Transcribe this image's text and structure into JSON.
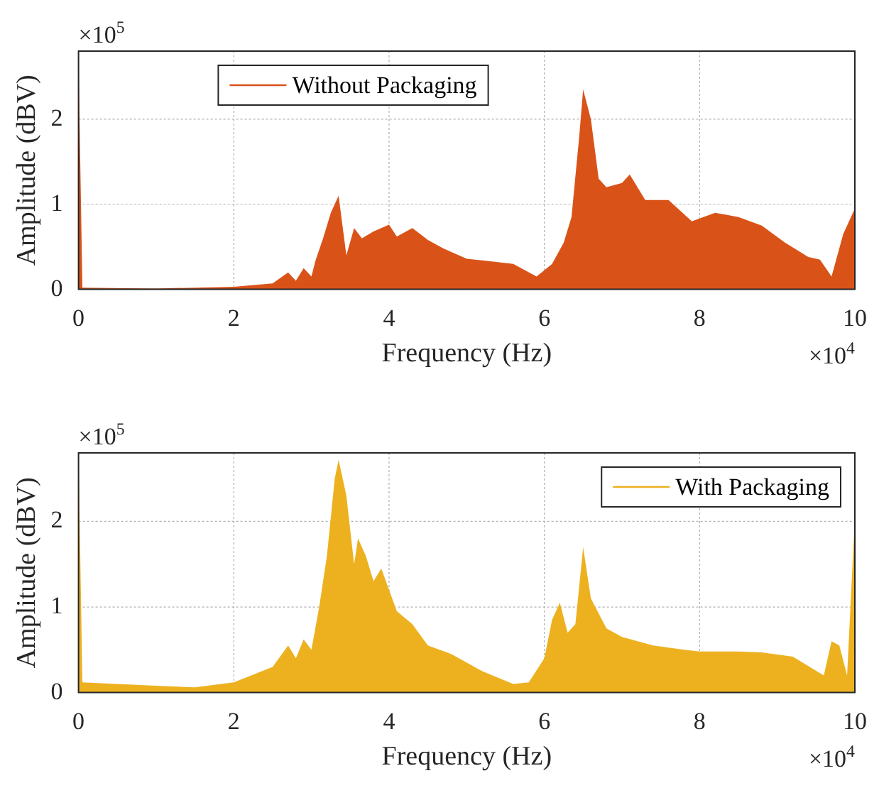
{
  "chart_data": [
    {
      "type": "area",
      "xlabel": "Frequency (Hz)",
      "ylabel": "Amplitude (dBV)",
      "x": [
        0,
        0.05,
        1,
        2,
        2.5,
        2.7,
        2.8,
        2.9,
        3.0,
        3.05,
        3.15,
        3.25,
        3.35,
        3.45,
        3.55,
        3.65,
        3.8,
        4.0,
        4.1,
        4.3,
        4.5,
        4.7,
        5.0,
        5.3,
        5.6,
        5.9,
        6.1,
        6.25,
        6.35,
        6.45,
        6.5,
        6.6,
        6.7,
        6.8,
        7.0,
        7.1,
        7.3,
        7.6,
        7.9,
        8.2,
        8.5,
        8.8,
        9.1,
        9.4,
        9.55,
        9.7,
        9.85,
        10
      ],
      "series": [
        {
          "name": "Without Packaging",
          "color": "#d95319",
          "values": [
            2.7,
            0.02,
            0.01,
            0.03,
            0.07,
            0.2,
            0.1,
            0.25,
            0.15,
            0.33,
            0.6,
            0.9,
            1.1,
            0.4,
            0.72,
            0.6,
            0.68,
            0.76,
            0.62,
            0.72,
            0.58,
            0.48,
            0.36,
            0.33,
            0.3,
            0.15,
            0.3,
            0.55,
            0.85,
            1.8,
            2.35,
            2.0,
            1.3,
            1.2,
            1.25,
            1.35,
            1.05,
            1.05,
            0.8,
            0.9,
            0.85,
            0.75,
            0.55,
            0.38,
            0.35,
            0.15,
            0.65,
            0.95
          ]
        }
      ],
      "xlim": [
        0,
        10
      ],
      "xticks": [
        0,
        2,
        4,
        6,
        8,
        10
      ],
      "ylim": [
        0,
        2.8
      ],
      "yticks": [
        0,
        1,
        2
      ],
      "grid": true,
      "legend": "top left",
      "annotations": [
        "×10$^{5}$",
        "×10$^{4}$"
      ]
    },
    {
      "type": "area",
      "xlabel": "Frequency (Hz)",
      "ylabel": "Amplitude (dBV)",
      "x": [
        0,
        0.05,
        1,
        1.5,
        2,
        2.5,
        2.7,
        2.8,
        2.9,
        3.0,
        3.1,
        3.2,
        3.3,
        3.35,
        3.45,
        3.55,
        3.6,
        3.7,
        3.8,
        3.9,
        4.0,
        4.1,
        4.3,
        4.5,
        4.8,
        5.2,
        5.6,
        5.8,
        6.0,
        6.1,
        6.2,
        6.3,
        6.4,
        6.5,
        6.6,
        6.8,
        7.0,
        7.4,
        7.8,
        8.0,
        8.5,
        8.8,
        9.2,
        9.6,
        9.7,
        9.8,
        9.9,
        10
      ],
      "series": [
        {
          "name": "With Packaging",
          "color": "#edb120",
          "values": [
            2.8,
            0.12,
            0.08,
            0.06,
            0.12,
            0.3,
            0.55,
            0.4,
            0.62,
            0.5,
            1.0,
            1.6,
            2.5,
            2.72,
            2.3,
            1.5,
            1.8,
            1.6,
            1.3,
            1.45,
            1.2,
            0.95,
            0.8,
            0.55,
            0.45,
            0.25,
            0.1,
            0.12,
            0.4,
            0.85,
            1.05,
            0.7,
            0.8,
            1.7,
            1.1,
            0.75,
            0.65,
            0.55,
            0.5,
            0.48,
            0.48,
            0.47,
            0.42,
            0.2,
            0.6,
            0.55,
            0.2,
            2.05
          ]
        }
      ],
      "xlim": [
        0,
        10
      ],
      "xticks": [
        0,
        2,
        4,
        6,
        8,
        10
      ],
      "ylim": [
        0,
        2.8
      ],
      "yticks": [
        0,
        1,
        2
      ],
      "grid": true,
      "legend": "top right",
      "annotations": [
        "×10$^{5}$",
        "×10$^{4}$"
      ]
    }
  ]
}
